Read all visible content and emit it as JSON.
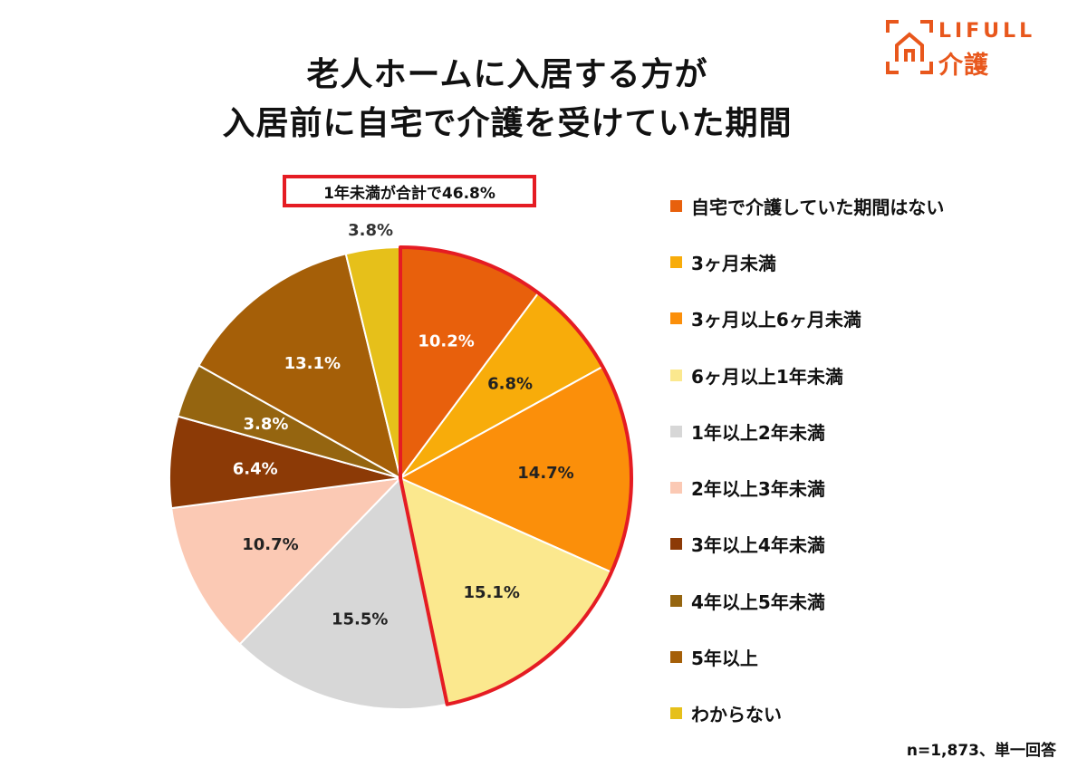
{
  "header": {
    "title_line1": "老人ホームに入居する方が",
    "title_line2": "入居前に自宅で介護を受けていた期間",
    "logo_text": "LIFULL",
    "logo_sub": "介護"
  },
  "callout": {
    "text": "1年未満が合計で46.8%"
  },
  "note": {
    "text": "n=1,873、単一回答"
  },
  "colors": {
    "brand": "#e8571c",
    "highlight": "#e51c23"
  },
  "chart_data": {
    "type": "pie",
    "title": "老人ホームに入居する方が入居前に自宅で介護を受けていた期間",
    "start_angle_deg": 0,
    "direction": "clockwise",
    "legend_position": "right",
    "highlighted_slices": [
      0,
      1,
      2,
      3
    ],
    "slices": [
      {
        "label": "自宅で介護していた期間はない",
        "value": 10.2,
        "display": "10.2%",
        "color": "#e8600c",
        "text_color": "#ffffff"
      },
      {
        "label": "3ヶ月未満",
        "value": 6.8,
        "display": "6.8%",
        "color": "#f8ac0a",
        "text_color": "#222222"
      },
      {
        "label": "3ヶ月以上6ヶ月未満",
        "value": 14.7,
        "display": "14.7%",
        "color": "#fb8f0a",
        "text_color": "#222222"
      },
      {
        "label": "6ヶ月以上1年未満",
        "value": 15.1,
        "display": "15.1%",
        "color": "#fbe88e",
        "text_color": "#222222"
      },
      {
        "label": "1年以上2年未満",
        "value": 15.5,
        "display": "15.5%",
        "color": "#d7d7d7",
        "text_color": "#222222"
      },
      {
        "label": "2年以上3年未満",
        "value": 10.7,
        "display": "10.7%",
        "color": "#fbc9b4",
        "text_color": "#222222"
      },
      {
        "label": "3年以上4年未満",
        "value": 6.4,
        "display": "6.4%",
        "color": "#8c3a06",
        "text_color": "#ffffff"
      },
      {
        "label": "4年以上5年未満",
        "value": 3.8,
        "display": "3.8%",
        "color": "#956510",
        "text_color": "#ffffff"
      },
      {
        "label": "5年以上",
        "value": 13.1,
        "display": "13.1%",
        "color": "#a55f08",
        "text_color": "#ffffff"
      },
      {
        "label": "わからない",
        "value": 3.8,
        "display": "3.8%",
        "color": "#e6c01a",
        "text_color": "#222222",
        "label_outside": true
      }
    ]
  }
}
